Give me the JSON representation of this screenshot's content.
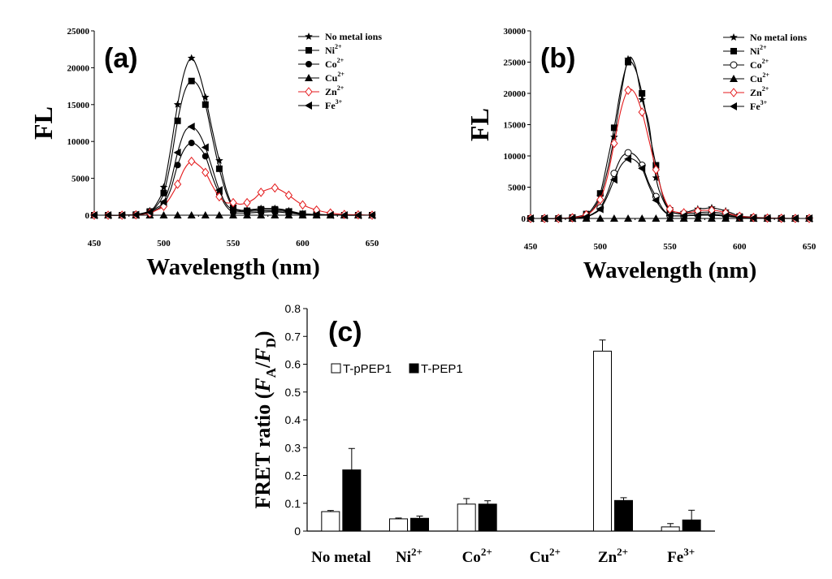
{
  "chart_data": [
    {
      "type": "line",
      "panel": "(a)",
      "xlabel": "Wavelength (nm)",
      "ylabel": "FL",
      "xlim": [
        450,
        650
      ],
      "ylim": [
        0,
        25000
      ],
      "xticks": [
        "450",
        "500",
        "550",
        "600",
        "650"
      ],
      "yticks": [
        "0",
        "5000",
        "10000",
        "15000",
        "20000",
        "25000"
      ],
      "x": [
        450,
        460,
        470,
        480,
        490,
        495,
        500,
        505,
        510,
        515,
        520,
        525,
        530,
        535,
        540,
        545,
        550,
        555,
        560,
        565,
        570,
        575,
        580,
        585,
        590,
        595,
        600,
        610,
        620,
        630,
        640,
        650
      ],
      "series": [
        {
          "name": "No metal ions",
          "label": "No metal ions",
          "marker": "star",
          "color": "#000000",
          "values": [
            0,
            0,
            0,
            100,
            600,
            1600,
            3800,
            9000,
            15000,
            19500,
            21300,
            19500,
            16000,
            11500,
            7400,
            3500,
            1200,
            700,
            700,
            800,
            900,
            900,
            900,
            800,
            600,
            400,
            200,
            100,
            50,
            0,
            0,
            0
          ]
        },
        {
          "name": "Ni2+",
          "label": "Ni",
          "sup": "2+",
          "marker": "square",
          "color": "#000000",
          "values": [
            0,
            0,
            0,
            80,
            500,
            1300,
            3000,
            7200,
            12800,
            16800,
            18200,
            17500,
            15000,
            10500,
            6300,
            3000,
            1000,
            600,
            600,
            700,
            800,
            800,
            800,
            700,
            500,
            350,
            180,
            90,
            40,
            0,
            0,
            0
          ]
        },
        {
          "name": "Co2+",
          "label": "Co",
          "sup": "2+",
          "marker": "circle",
          "color": "#000000",
          "values": [
            0,
            0,
            0,
            50,
            300,
            800,
            1500,
            3500,
            6800,
            9000,
            9800,
            9300,
            8000,
            5200,
            2900,
            1200,
            400,
            300,
            300,
            350,
            400,
            450,
            450,
            400,
            300,
            200,
            100,
            50,
            20,
            0,
            0,
            0
          ]
        },
        {
          "name": "Cu2+",
          "label": "Cu",
          "sup": "2+",
          "marker": "triangle-up",
          "color": "#000000",
          "values": [
            0,
            0,
            0,
            0,
            0,
            0,
            0,
            0,
            0,
            0,
            0,
            0,
            0,
            0,
            0,
            0,
            0,
            0,
            0,
            0,
            0,
            0,
            0,
            0,
            0,
            0,
            0,
            0,
            0,
            0,
            0,
            0
          ]
        },
        {
          "name": "Zn2+",
          "label": "Zn",
          "sup": "2+",
          "marker": "diamond",
          "color": "#e41a1c",
          "values": [
            0,
            0,
            0,
            50,
            300,
            700,
            1200,
            2500,
            4200,
            6300,
            7300,
            6800,
            5800,
            4000,
            2500,
            1700,
            1700,
            1500,
            1700,
            2200,
            3100,
            3500,
            3700,
            3300,
            2700,
            2000,
            1400,
            700,
            300,
            100,
            50,
            0
          ]
        },
        {
          "name": "Fe3+",
          "label": "Fe",
          "sup": "3+",
          "marker": "triangle-left",
          "color": "#000000",
          "values": [
            0,
            0,
            0,
            60,
            400,
            1000,
            1800,
            4500,
            8500,
            11300,
            12000,
            11200,
            9200,
            6300,
            3400,
            1500,
            700,
            500,
            500,
            550,
            600,
            600,
            600,
            550,
            450,
            300,
            150,
            80,
            30,
            0,
            0,
            0
          ]
        }
      ]
    },
    {
      "type": "line",
      "panel": "(b)",
      "xlabel": "Wavelength (nm)",
      "ylabel": "FL",
      "xlim": [
        450,
        650
      ],
      "ylim": [
        0,
        30000
      ],
      "xticks": [
        "450",
        "500",
        "550",
        "600",
        "650"
      ],
      "yticks": [
        "0",
        "5000",
        "10000",
        "15000",
        "20000",
        "25000",
        "30000"
      ],
      "x": [
        450,
        460,
        470,
        480,
        490,
        495,
        500,
        505,
        510,
        515,
        520,
        525,
        530,
        535,
        540,
        545,
        550,
        555,
        560,
        565,
        570,
        575,
        580,
        585,
        590,
        595,
        600,
        610,
        620,
        630,
        640,
        650
      ],
      "series": [
        {
          "name": "No metal ions",
          "label": "No metal ions",
          "marker": "star",
          "color": "#000000",
          "values": [
            0,
            0,
            0,
            100,
            500,
            1500,
            3500,
            7500,
            13000,
            20000,
            25500,
            24500,
            19000,
            15000,
            6500,
            3000,
            1200,
            800,
            900,
            1200,
            1500,
            1600,
            1700,
            1500,
            1200,
            800,
            400,
            200,
            80,
            30,
            0,
            0
          ]
        },
        {
          "name": "Ni2+",
          "label": "Ni",
          "sup": "2+",
          "marker": "square",
          "color": "#000000",
          "values": [
            0,
            0,
            0,
            150,
            700,
            1800,
            4000,
            9000,
            14500,
            21000,
            25000,
            24000,
            20000,
            14000,
            8500,
            3500,
            1300,
            800,
            700,
            800,
            900,
            1000,
            1000,
            900,
            700,
            500,
            300,
            150,
            60,
            20,
            0,
            0
          ]
        },
        {
          "name": "Co2+",
          "label": "Co",
          "sup": "2+",
          "marker": "circle-open",
          "color": "#000000",
          "values": [
            0,
            0,
            0,
            50,
            300,
            800,
            1700,
            4000,
            7200,
            9700,
            10500,
            10100,
            8500,
            5600,
            3500,
            1500,
            500,
            400,
            400,
            500,
            600,
            700,
            700,
            600,
            500,
            350,
            200,
            100,
            40,
            0,
            0,
            0
          ]
        },
        {
          "name": "Cu2+",
          "label": "Cu",
          "sup": "2+",
          "marker": "triangle-up",
          "color": "#000000",
          "values": [
            0,
            0,
            0,
            0,
            0,
            0,
            0,
            0,
            0,
            0,
            0,
            0,
            0,
            0,
            0,
            0,
            0,
            0,
            0,
            0,
            0,
            0,
            0,
            0,
            0,
            0,
            0,
            0,
            0,
            0,
            0,
            0
          ]
        },
        {
          "name": "Zn2+",
          "label": "Zn",
          "sup": "2+",
          "marker": "diamond",
          "color": "#e41a1c",
          "values": [
            0,
            0,
            0,
            100,
            600,
            1400,
            3000,
            6500,
            12000,
            17500,
            20500,
            20000,
            17000,
            12500,
            7800,
            3800,
            1500,
            1000,
            900,
            1000,
            1200,
            1300,
            1300,
            1200,
            900,
            600,
            350,
            150,
            60,
            20,
            0,
            0
          ]
        },
        {
          "name": "Fe3+",
          "label": "Fe",
          "sup": "3+",
          "marker": "triangle-left",
          "color": "#000000",
          "values": [
            0,
            0,
            0,
            40,
            250,
            700,
            1500,
            3500,
            6200,
            8500,
            9500,
            9300,
            8000,
            5200,
            2900,
            1300,
            500,
            400,
            400,
            450,
            500,
            500,
            500,
            450,
            350,
            250,
            150,
            70,
            30,
            0,
            0,
            0
          ]
        }
      ]
    },
    {
      "type": "bar",
      "panel": "(c)",
      "ylabel_parts": {
        "pre": "FRET ratio (",
        "fa": "F",
        "sa": "A",
        "slash": "/",
        "fd": "F",
        "sd": "D",
        "post": ")"
      },
      "ylim": [
        0,
        0.8
      ],
      "yticks": [
        "0",
        "0.1",
        "0.2",
        "0.3",
        "0.4",
        "0.5",
        "0.6",
        "0.7",
        "0.8"
      ],
      "categories": [
        {
          "base": "No metal",
          "sup": ""
        },
        {
          "base": "Ni",
          "sup": "2+"
        },
        {
          "base": "Co",
          "sup": "2+"
        },
        {
          "base": "Cu",
          "sup": "2+"
        },
        {
          "base": "Zn",
          "sup": "2+"
        },
        {
          "base": "Fe",
          "sup": "3+"
        }
      ],
      "series": [
        {
          "name": "T-pPEP1",
          "fill": "#ffffff",
          "values": [
            0.07,
            0.044,
            0.097,
            0,
            0.647,
            0.015
          ],
          "errors": [
            0.004,
            0.003,
            0.02,
            0,
            0.04,
            0.012
          ]
        },
        {
          "name": "T-PEP1",
          "fill": "#000000",
          "values": [
            0.22,
            0.046,
            0.097,
            0,
            0.11,
            0.04
          ],
          "errors": [
            0.077,
            0.008,
            0.012,
            0,
            0.01,
            0.035
          ]
        }
      ],
      "legend": "upper-left"
    }
  ]
}
